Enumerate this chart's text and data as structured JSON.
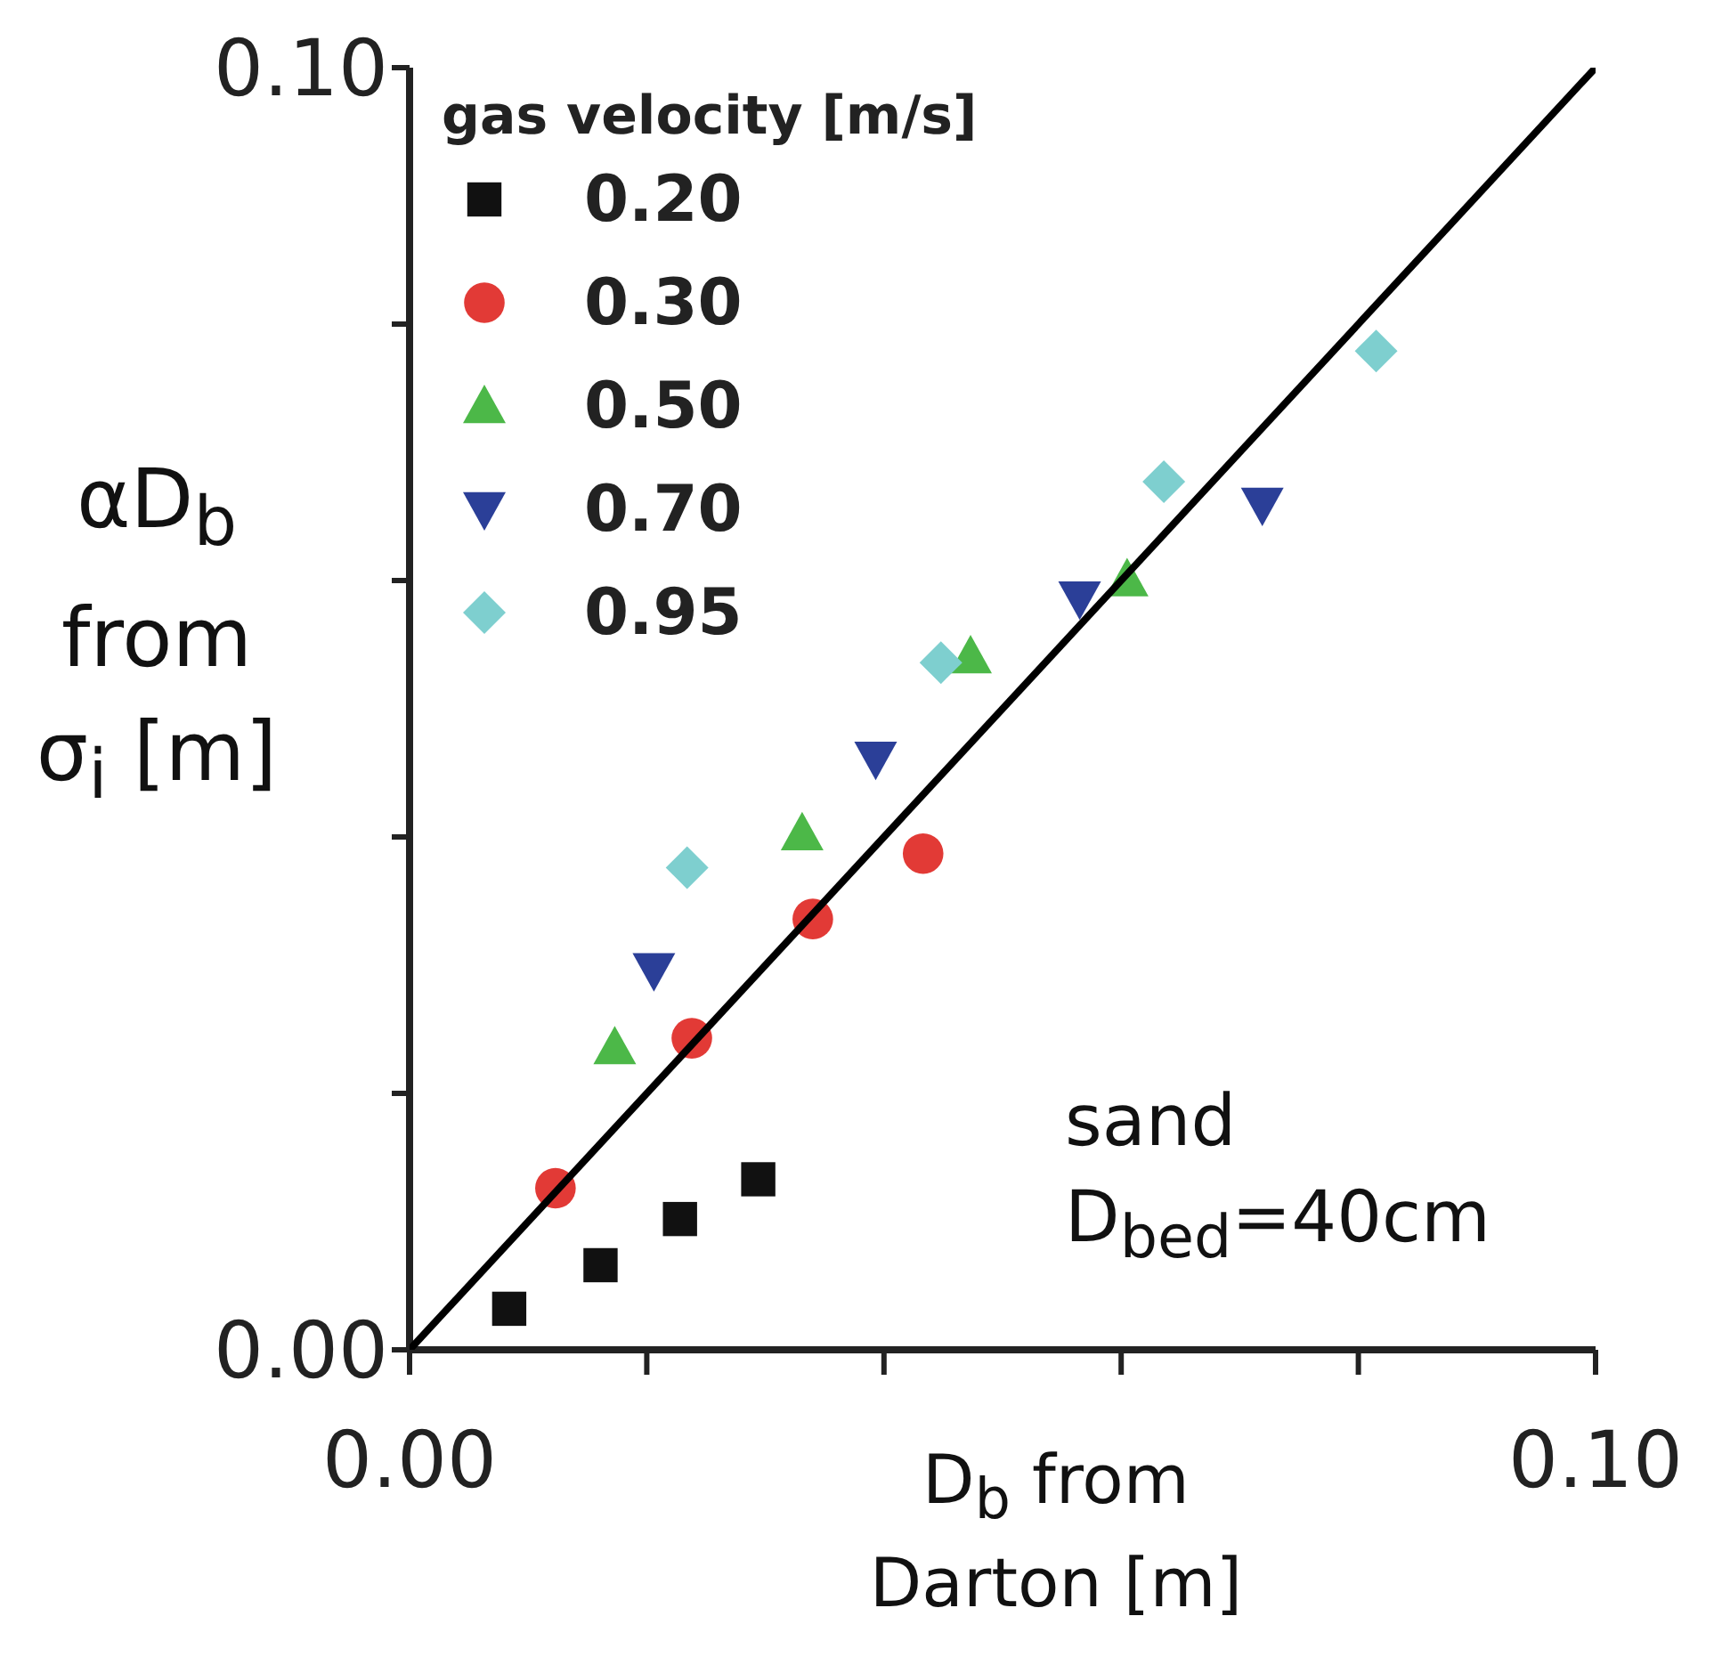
{
  "chart_data": {
    "type": "scatter",
    "xlabel": "D$_{b}$ from Darton [m]",
    "ylabel": "αD$_{b}$ from σ$_{i}$ [m]",
    "legend_title": "gas velocity [m/s]",
    "legend": "top left",
    "xlim": [
      0,
      0.1
    ],
    "ylim": [
      0,
      0.1
    ],
    "xticks": [
      {
        "value": 0,
        "label": "0.00"
      },
      {
        "value": 0.02,
        "label": null
      },
      {
        "value": 0.04,
        "label": null
      },
      {
        "value": 0.06,
        "label": null
      },
      {
        "value": 0.08,
        "label": null
      },
      {
        "value": 0.1,
        "label": "0.10"
      }
    ],
    "yticks": [
      {
        "value": 0,
        "label": "0.00"
      },
      {
        "value": 0.02,
        "label": null
      },
      {
        "value": 0.04,
        "label": null
      },
      {
        "value": 0.06,
        "label": null
      },
      {
        "value": 0.08,
        "label": null
      },
      {
        "value": 0.1,
        "label": "0.10"
      }
    ],
    "annotations": [
      "sand",
      "D$_{bed}$=40cm"
    ],
    "series": [
      {
        "name": "0.20",
        "color": "#111111",
        "marker": "square",
        "x": [
          0.0084,
          0.0161,
          0.0228,
          0.0294
        ],
        "values": [
          0.0032,
          0.0066,
          0.0102,
          0.0133
        ]
      },
      {
        "name": "0.30",
        "color": "#e23a36",
        "marker": "circle",
        "x": [
          0.0123,
          0.0238,
          0.034,
          0.0433
        ],
        "values": [
          0.0126,
          0.0243,
          0.0336,
          0.0387
        ]
      },
      {
        "name": "0.50",
        "color": "#4cb848",
        "marker": "triangle",
        "x": [
          0.0173,
          0.0331,
          0.0473,
          0.0605
        ],
        "values": [
          0.0236,
          0.0403,
          0.0541,
          0.0601
        ]
      },
      {
        "name": "0.70",
        "color": "#2b3f98",
        "marker": "triangle-down",
        "x": [
          0.0206,
          0.0393,
          0.0565,
          0.0719
        ],
        "values": [
          0.0296,
          0.0461,
          0.0586,
          0.0659
        ]
      },
      {
        "name": "0.95",
        "color": "#7ecfcf",
        "marker": "diamond",
        "x": [
          0.0234,
          0.0448,
          0.0636,
          0.0815
        ],
        "values": [
          0.0376,
          0.0536,
          0.0677,
          0.0779
        ]
      },
      {
        "type": "line",
        "color": "#000000",
        "marker": "none",
        "x": [
          0,
          0.1
        ],
        "values": [
          0,
          0.1
        ]
      }
    ]
  }
}
